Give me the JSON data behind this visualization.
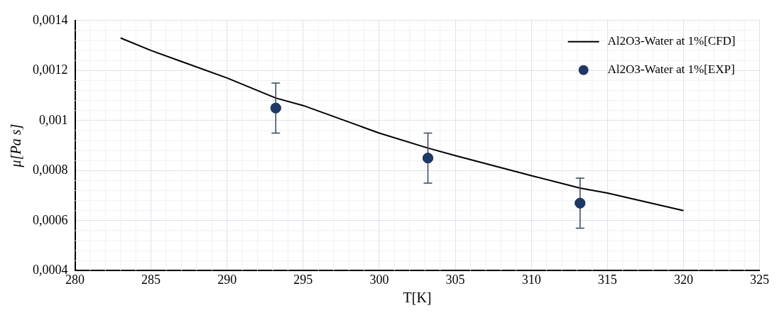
{
  "chart_data": {
    "type": "line",
    "xlabel": "T[K]",
    "ylabel": "μ[Pa s]",
    "xlim": [
      280,
      325
    ],
    "xticks": [
      280,
      285,
      290,
      295,
      300,
      305,
      310,
      315,
      320,
      325
    ],
    "ylim": [
      0.0004,
      0.0014
    ],
    "yticks": [
      {
        "value": 0.0004,
        "label": "0,0004"
      },
      {
        "value": 0.0006,
        "label": "0,0006"
      },
      {
        "value": 0.0008,
        "label": "0,0008"
      },
      {
        "value": 0.001,
        "label": "0,001"
      },
      {
        "value": 0.0012,
        "label": "0,0012"
      },
      {
        "value": 0.0014,
        "label": "0,0014"
      }
    ],
    "grid": true,
    "legend": "top right",
    "series": [
      {
        "name": "Al2O3-Water at 1%[CFD]",
        "type": "line",
        "color": "#000000",
        "marker": "none",
        "line_style": "solid",
        "x": [
          283,
          285,
          290,
          293.2,
          295,
          300,
          303.2,
          305,
          310,
          313.2,
          315,
          320
        ],
        "values": [
          0.00133,
          0.00128,
          0.00117,
          0.00109,
          0.00106,
          0.00095,
          0.00089,
          0.00086,
          0.00078,
          0.00073,
          0.00071,
          0.00064
        ]
      },
      {
        "name": "Al2O3-Water at 1%[EXP]",
        "type": "scatter",
        "color": "#203864",
        "marker": "circle",
        "x": [
          293.2,
          303.2,
          313.2
        ],
        "values": [
          0.00105,
          0.00085,
          0.00067
        ],
        "errors": [
          0.0001,
          0.0001,
          0.0001
        ]
      }
    ]
  }
}
